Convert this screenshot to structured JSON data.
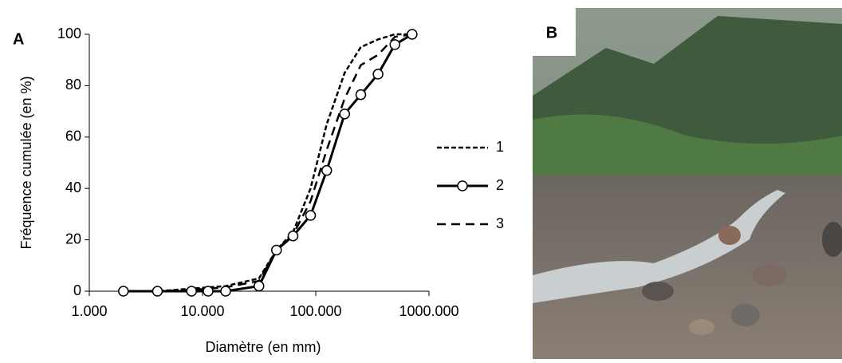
{
  "chart_data": {
    "type": "line",
    "panel_label": "A",
    "xlabel": "Diamètre (en mm)",
    "ylabel": "Fréquence cumulée (en %)",
    "x": [
      2,
      4,
      8,
      11.2,
      16,
      31.5,
      45,
      63,
      90,
      125,
      180,
      250,
      355,
      500,
      710
    ],
    "series": [
      {
        "name": "1",
        "color": "#000000",
        "line_style": "dotted",
        "marker": "none",
        "values": [
          0,
          0,
          1,
          1.5,
          2,
          5,
          16,
          23,
          40,
          65,
          85,
          95,
          98,
          100,
          100
        ]
      },
      {
        "name": "2",
        "color": "#000000",
        "line_style": "solid",
        "marker": "circle",
        "values": [
          0,
          0,
          0,
          0,
          0,
          2,
          16,
          21.5,
          29.5,
          47,
          69,
          76.5,
          84.5,
          96,
          100
        ]
      },
      {
        "name": "3",
        "color": "#000000",
        "line_style": "dashed",
        "marker": "none",
        "values": [
          0,
          0,
          0.5,
          1,
          1.5,
          4,
          16,
          22,
          35,
          55,
          75,
          88,
          92,
          99,
          100
        ]
      }
    ],
    "xscale": "log",
    "xlim": [
      1,
      1000
    ],
    "xticks": [
      {
        "value": 1,
        "label": "1.000"
      },
      {
        "value": 10,
        "label": "10.000"
      },
      {
        "value": 100,
        "label": "100.000"
      },
      {
        "value": 1000,
        "label": "1000.000"
      }
    ],
    "ylim": [
      0,
      100
    ],
    "yticks": [
      0,
      20,
      40,
      60,
      80,
      100
    ],
    "grid": false,
    "legend": "right"
  },
  "photo": {
    "label": "B"
  }
}
